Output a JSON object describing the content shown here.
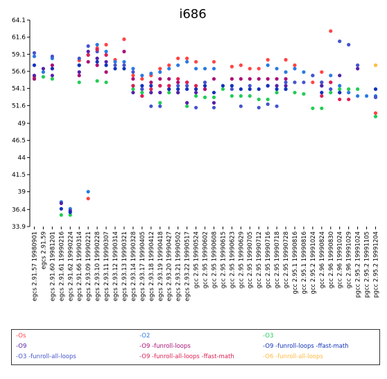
{
  "chart_data": {
    "type": "scatter",
    "title": "i686",
    "xlabel": "",
    "ylabel": "",
    "ylim": [
      33.9,
      64.1
    ],
    "yticks": [
      "33.9",
      "36.4",
      "39",
      "41.5",
      "44",
      "46.5",
      "49",
      "51.6",
      "54.1",
      "56.6",
      "59.1",
      "61.6",
      "64.1"
    ],
    "categories": [
      "egcs 2.91.57 19980901",
      "egcs 2.91.59",
      "egcs 2.91.60 19981201",
      "egcs 2.91.61 19990216",
      "egcs 2.91.62 19990224",
      "egcs 2.91.66 19990314",
      "egcs 2.93.09 19990221",
      "egcs 2.93.10 19990228",
      "egcs 2.93.11 19990307",
      "egcs 2.93.12 19990314",
      "egcs 2.93.13 19990321",
      "egcs 2.93.14 19990328",
      "egcs 2.93.17 19990405",
      "egcs 2.93.18 19990412",
      "egcs 2.93.19 19990418",
      "egcs 2.93.20 19990427",
      "egcs 2.93.21 19990502",
      "egcs 2.93.22 19990517",
      "gcc 2.95 19990524",
      "gcc 2.95 19990602",
      "gcc 2.95 19990608",
      "gcc 2.95 19990615",
      "gcc 2.95 19990623",
      "gcc 2.95 19990629",
      "gcc 2.95 19990705",
      "gcc 2.95 19990712",
      "gcc 2.95 19990716",
      "gcc 2.95 19990718",
      "gcc 2.95 19990728",
      "gcc 2.95.1 19990816",
      "gcc 2.95.1 19990816",
      "gcc 2.95.2 19991024",
      "gcc 2.96 19990824",
      "gcc 2.96 19990830",
      "gcc 2.96 19991024",
      "gcc 2.96 19991029",
      "pgcc 2.95.2 19991024",
      "pgcc 2.95.2 19991105",
      "pgcc 2.95.2 19991204"
    ],
    "series": [
      {
        "name": "-Os",
        "color": "#ff4444",
        "values": [
          55.8,
          null,
          57.0,
          null,
          null,
          58.2,
          38.0,
          60.0,
          60.5,
          58.3,
          61.3,
          56.0,
          55.5,
          56.0,
          57.0,
          57.5,
          58.5,
          58.5,
          58.0,
          null,
          58.0,
          null,
          57.3,
          57.5,
          57.0,
          57.0,
          58.3,
          null,
          58.3,
          57.5,
          null,
          55.0,
          56.5,
          62.5,
          53.5,
          null,
          null,
          null,
          50.5
        ]
      },
      {
        "name": "-O2",
        "color": "#2a7ae2",
        "values": [
          58.8,
          56.5,
          58.5,
          37.5,
          36.5,
          57.5,
          39.0,
          60.5,
          59.5,
          58.0,
          58.0,
          57.0,
          56.0,
          56.3,
          56.5,
          57.0,
          57.5,
          58.0,
          57.0,
          57.0,
          57.0,
          null,
          null,
          null,
          null,
          null,
          57.5,
          57.0,
          56.5,
          57.0,
          56.5,
          56.0,
          54.5,
          56.0,
          54.5,
          53.5,
          53.0,
          53.0,
          53.0
        ]
      },
      {
        "name": "-O3",
        "color": "#22cc55",
        "values": [
          55.5,
          55.8,
          55.5,
          35.6,
          35.6,
          55.0,
          null,
          55.2,
          55.0,
          null,
          null,
          54.0,
          53.5,
          53.5,
          52.0,
          53.5,
          53.5,
          51.5,
          53.0,
          52.8,
          52.8,
          54.0,
          53.0,
          53.0,
          53.0,
          52.5,
          52.5,
          53.5,
          54.0,
          53.5,
          53.3,
          51.2,
          51.2,
          53.5,
          54.0,
          54.0,
          54.0,
          null,
          50.0
        ]
      },
      {
        "name": "-O9",
        "color": "#5522aa",
        "values": [
          56.0,
          57.0,
          56.0,
          37.3,
          36.2,
          56.5,
          59.5,
          58.5,
          58.0,
          null,
          null,
          53.5,
          53.0,
          53.5,
          53.5,
          54.0,
          53.5,
          52.0,
          53.5,
          54.0,
          52.0,
          null,
          null,
          null,
          null,
          null,
          54.5,
          54.5,
          54.5,
          null,
          null,
          null,
          54.5,
          null,
          56.0,
          null,
          57.0,
          null,
          null
        ]
      },
      {
        "name": "-O9 -funroll-loops",
        "color": "#aa1177",
        "values": [
          55.5,
          null,
          57.5,
          null,
          null,
          56.0,
          58.0,
          57.5,
          56.5,
          null,
          59.5,
          55.5,
          54.0,
          55.0,
          55.5,
          55.5,
          55.0,
          55.0,
          54.0,
          54.0,
          55.5,
          null,
          55.5,
          55.5,
          55.5,
          55.5,
          55.5,
          55.5,
          55.5,
          null,
          null,
          null,
          55.0,
          55.0,
          null,
          null,
          null,
          null,
          null
        ]
      },
      {
        "name": "-O9 -funroll-loops -ffast-math",
        "color": "#1133bb",
        "values": [
          57.5,
          null,
          57.0,
          36.5,
          36.0,
          57.5,
          59.0,
          58.0,
          57.5,
          57.0,
          57.0,
          54.5,
          54.5,
          54.5,
          54.5,
          54.0,
          54.0,
          54.0,
          54.0,
          54.5,
          53.5,
          54.5,
          54.5,
          54.0,
          54.0,
          54.0,
          54.5,
          54.0,
          54.0,
          null,
          null,
          null,
          53.5,
          null,
          53.5,
          null,
          null,
          null,
          54.0
        ]
      },
      {
        "name": "-O3 -funroll-all-loops",
        "color": "#4455cc",
        "values": [
          59.3,
          null,
          58.8,
          null,
          null,
          58.5,
          60.3,
          59.5,
          59.0,
          57.5,
          57.5,
          56.5,
          54.0,
          51.5,
          51.5,
          54.5,
          54.5,
          54.5,
          51.3,
          55.0,
          51.3,
          null,
          54.0,
          51.5,
          54.5,
          51.3,
          51.8,
          51.5,
          55.0,
          55.0,
          55.0,
          56.0,
          55.0,
          54.0,
          61.0,
          60.5,
          57.5,
          null,
          52.8
        ]
      },
      {
        "name": "-O9 -funroll-all-loops -ffast-math",
        "color": "#dd2255",
        "values": [
          null,
          null,
          null,
          null,
          null,
          null,
          59.0,
          59.8,
          59.0,
          null,
          null,
          54.5,
          53.0,
          54.0,
          54.5,
          54.5,
          55.5,
          55.0,
          54.5,
          null,
          null,
          null,
          null,
          null,
          null,
          null,
          null,
          null,
          null,
          null,
          null,
          null,
          53.0,
          55.0,
          52.5,
          52.5,
          null,
          null,
          null
        ]
      },
      {
        "name": "-O6 -funroll-all-loops",
        "color": "#ffbb44",
        "values": [
          null,
          null,
          null,
          null,
          null,
          null,
          null,
          null,
          null,
          null,
          null,
          null,
          null,
          null,
          null,
          null,
          null,
          null,
          null,
          null,
          null,
          null,
          null,
          null,
          null,
          null,
          null,
          null,
          null,
          null,
          null,
          null,
          null,
          null,
          null,
          null,
          null,
          null,
          57.5
        ]
      }
    ],
    "legend_position": "bottom",
    "grid": false
  }
}
